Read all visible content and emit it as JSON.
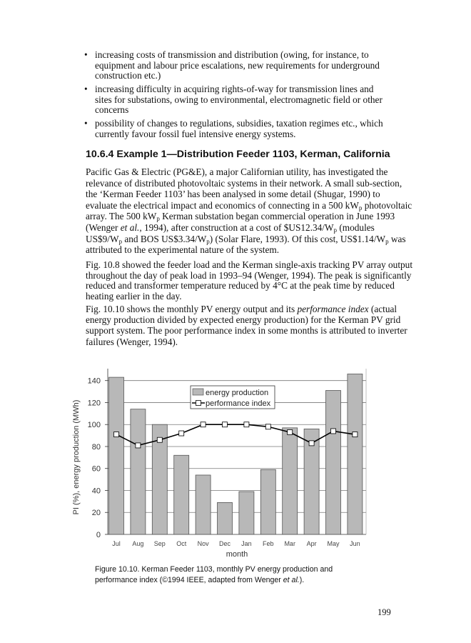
{
  "bullets": [
    {
      "lines": [
        [
          "increasing costs of transmission and distribution (owing, for instance, to"
        ],
        [
          "equipment and labour price escalations, new requirements for underground"
        ],
        [
          "construction etc.)"
        ]
      ]
    },
    {
      "lines": [
        [
          "increasing difficulty in acquiring rights-of-way for transmission lines and"
        ],
        [
          "sites for substations, owing to environmental, electromagnetic field or other"
        ],
        [
          "concerns"
        ]
      ]
    },
    {
      "lines": [
        [
          "possibility of changes to regulations, subsidies, taxation regimes etc., which"
        ],
        [
          "currently favour fossil fuel intensive energy systems."
        ]
      ]
    }
  ],
  "heading": "10.6.4 Example 1—Distribution Feeder 1103, Kerman, California",
  "paragraphs": [
    {
      "lines": [
        [
          "Pacific Gas & Electric (PG&E), a major Californian utility, has investigated the"
        ],
        [
          "relevance of distributed photovoltaic systems in their network. A small sub-section,"
        ],
        [
          "the ‘Kerman Feeder 1103’ has been analysed in some detail (Shugar, 1990) to"
        ],
        [
          "evaluate the electrical impact and economics of connecting in a 500 kW",
          {
            "sub": "p"
          },
          " photovoltaic"
        ],
        [
          "array. The 500 kW",
          {
            "sub": "p"
          },
          " Kerman substation began commercial operation in June 1993"
        ],
        [
          "(Wenger ",
          {
            "i": "et al."
          },
          ", 1994), after construction at a cost of $US12.34/W",
          {
            "sub": "p"
          },
          " (modules"
        ],
        [
          "US$9/W",
          {
            "sub": "p"
          },
          " and BOS US$3.34/W",
          {
            "sub": "p"
          },
          ") (Solar Flare, 1993). Of this cost, US$1.14/W",
          {
            "sub": "p"
          },
          " was"
        ],
        [
          "attributed to the experimental nature of the system."
        ]
      ]
    },
    {
      "lines": [
        [
          "Fig. 10.8 showed the feeder load and the Kerman single-axis tracking PV array output"
        ],
        [
          "throughout the day of peak load in 1993–94 (Wenger, 1994). The peak is significantly"
        ],
        [
          "reduced and transformer temperature reduced by 4°C at the peak time by reduced"
        ],
        [
          "heating earlier in the day."
        ]
      ]
    },
    {
      "lines": [
        [
          "Fig. 10.10 shows the monthly PV energy output and its ",
          {
            "i": "performance index"
          },
          " (actual"
        ],
        [
          "energy production divided by expected energy production) for the Kerman PV grid"
        ],
        [
          "support system. The poor performance index in some months is attributed to inverter"
        ],
        [
          "failures (Wenger, 1994)."
        ]
      ]
    }
  ],
  "chart_data": {
    "type": "bar+line",
    "categories": [
      "Jul",
      "Aug",
      "Sep",
      "Oct",
      "Nov",
      "Dec",
      "Jan",
      "Feb",
      "Mar",
      "Apr",
      "May",
      "Jun"
    ],
    "series": [
      {
        "name": "energy production",
        "type": "bar",
        "values": [
          143,
          114,
          100,
          72,
          54,
          29,
          39,
          59,
          97,
          96,
          131,
          146
        ]
      },
      {
        "name": "performance index",
        "type": "line",
        "marker": "open-square",
        "values": [
          91,
          81,
          86,
          92,
          100,
          100,
          100,
          98,
          93,
          83,
          94,
          91
        ]
      }
    ],
    "xlabel": "month",
    "ylabel": "PI (%), energy production (MWh)",
    "ylim": [
      0,
      150
    ],
    "yticks": [
      0,
      20,
      40,
      60,
      80,
      100,
      120,
      140
    ],
    "grid": true,
    "legend": "top-center",
    "colors": {
      "bar": "#b8b8b8",
      "line": "#000000"
    }
  },
  "caption": {
    "line1": "Figure 10.10. Kerman Feeder 1103, monthly  PV energy  production and",
    "line2_pre": "performance index (©1994 IEEE, adapted from Wenger ",
    "line2_ital": "et al.",
    "line2_post": ")."
  },
  "page_number": "199"
}
